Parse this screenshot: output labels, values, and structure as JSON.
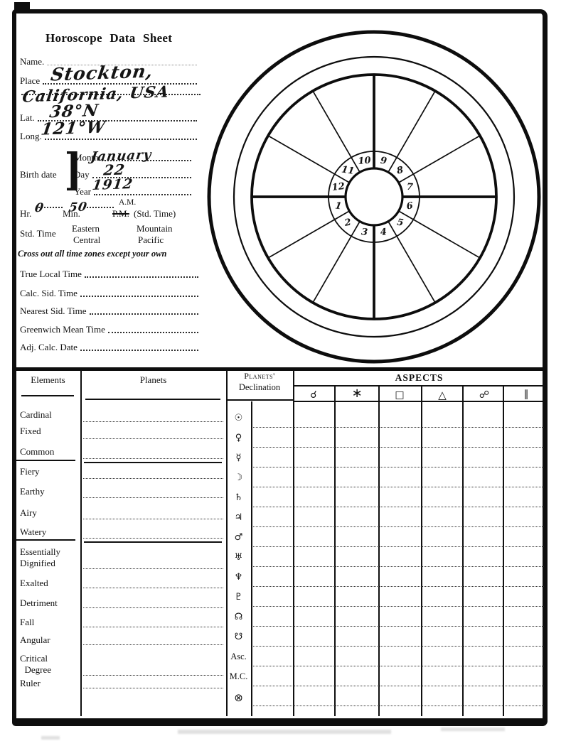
{
  "title": "Horoscope Data Sheet",
  "form": {
    "name_label": "Name.",
    "place_label": "Place",
    "lat_label": "Lat.",
    "long_label": "Long.",
    "birth_date_label": "Birth date",
    "birth_bracket": "]",
    "month_label": "Month",
    "day_label": "Day",
    "year_label": "Year",
    "hr_label": "Hr.",
    "min_label": "Min.",
    "am_label": "A.M.",
    "pm_label": "P.M.",
    "std_time_suffix": "(Std. Time)",
    "std_time_label": "Std. Time",
    "timezones": [
      "Eastern",
      "Central",
      "Mountain",
      "Pacific"
    ],
    "timezone_note": "Cross out all time zones except your own",
    "time_fields": [
      "True Local Time",
      "Calc. Sid. Time",
      "Nearest Sid. Time",
      "Greenwich Mean Time",
      "Adj. Calc. Date"
    ]
  },
  "handwriting": {
    "place_line1": "Stockton,",
    "place_line2": "California, USA",
    "lat": "38°N",
    "long": "121°W",
    "month": "January",
    "day": "22",
    "year": "1912",
    "hr": "0",
    "min": "50"
  },
  "wheel": {
    "house_numbers": [
      "1",
      "2",
      "3",
      "4",
      "5",
      "6",
      "7",
      "8",
      "9",
      "10",
      "11",
      "12"
    ]
  },
  "table": {
    "elements_header": "Elements",
    "planets_header": "Planets",
    "declination_header_line1": "Planets'",
    "declination_header_line2": "Declination",
    "aspects_header": "ASPECTS",
    "aspect_symbols": [
      "☌",
      "∗",
      "□",
      "△",
      "☍",
      "∥"
    ],
    "element_rows": [
      "Cardinal",
      "Fixed",
      "Common",
      "Fiery",
      "Earthy",
      "Airy",
      "Watery",
      "Essentially\nDignified",
      "Exalted",
      "Detriment",
      "Fall",
      "Angular",
      "Critical\n  Degree",
      "Ruler"
    ],
    "declination_rows": [
      "☉",
      "♀",
      "☿",
      "☽",
      "♄",
      "♃",
      "♂",
      "♅",
      "♆",
      "♇",
      "☊",
      "☋",
      "Asc.",
      "M.C.",
      "⊗"
    ]
  }
}
